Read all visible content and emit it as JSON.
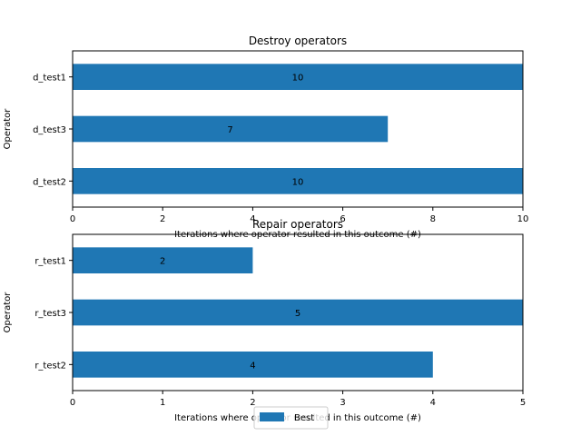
{
  "chart_data": [
    {
      "type": "bar",
      "orientation": "horizontal",
      "title": "Destroy operators",
      "xlabel": "Iterations where operator resulted in this outcome (#)",
      "ylabel": "Operator",
      "categories": [
        "d_test1",
        "d_test3",
        "d_test2"
      ],
      "series": [
        {
          "name": "Best",
          "values": [
            10,
            7,
            10
          ]
        }
      ],
      "xlim": [
        0,
        10
      ],
      "xticks": [
        0,
        2,
        4,
        6,
        8,
        10
      ],
      "grid": false
    },
    {
      "type": "bar",
      "orientation": "horizontal",
      "title": "Repair operators",
      "xlabel": "Iterations where operator resulted in this outcome (#)",
      "ylabel": "Operator",
      "categories": [
        "r_test1",
        "r_test3",
        "r_test2"
      ],
      "series": [
        {
          "name": "Best",
          "values": [
            2,
            5,
            4
          ]
        }
      ],
      "xlim": [
        0,
        5
      ],
      "xticks": [
        0,
        1,
        2,
        3,
        4,
        5
      ],
      "grid": false
    }
  ],
  "legend": {
    "placement": "bottom-center",
    "entries": [
      "Best"
    ]
  },
  "colors": {
    "bar": "#1f77b4",
    "axis": "#000000",
    "legend_border": "#cccccc"
  }
}
